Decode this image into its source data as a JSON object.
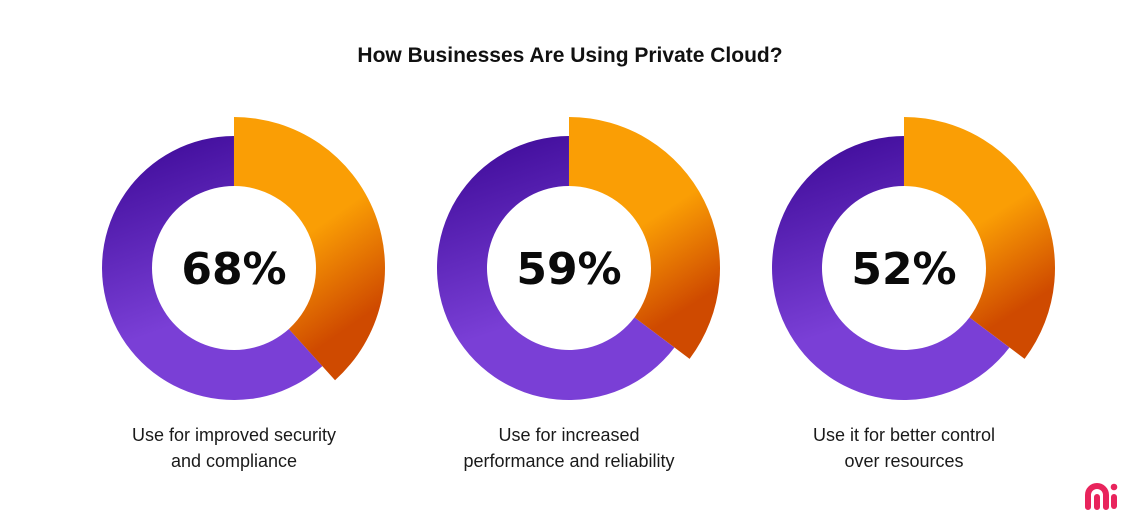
{
  "chart_data": {
    "type": "pie",
    "title": "How Businesses Are Using Private Cloud?",
    "categories": [
      "Use for improved security and compliance",
      "Use for increased performance and reliability",
      "Use it for better control over resources"
    ],
    "values": [
      68,
      59,
      52
    ],
    "labels": [
      "68%",
      "59%",
      "52%"
    ],
    "unit": "%",
    "colors": {
      "primary": "#7a3fd6",
      "primary_dark": "#3a0794",
      "accent": "#fa9e05",
      "accent_dark": "#cf4a00",
      "logo": "#e8245c"
    }
  },
  "captions": [
    [
      "Use for improved security",
      "and compliance"
    ],
    [
      "Use for increased",
      "performance and reliability"
    ],
    [
      "Use it for better control",
      "over resources"
    ]
  ]
}
